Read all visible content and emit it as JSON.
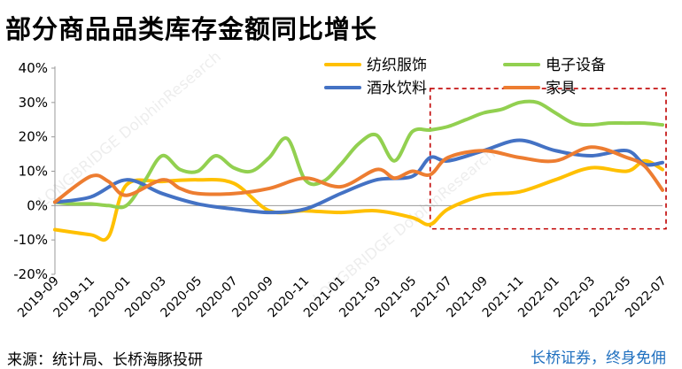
{
  "page": {
    "source_text": "来源：统计局、长桥海豚投研",
    "brand_text": "长桥证券，终身免佣",
    "watermark_text": "LONGBRIDGE DolphinResearch"
  },
  "chart_data": {
    "type": "line",
    "title": "部分商品品类库存金额同比增长",
    "xlabel": "",
    "ylabel": "",
    "y_unit": "%",
    "ylim": [
      -20,
      40
    ],
    "yticks": [
      -20,
      -10,
      0,
      10,
      20,
      30,
      40
    ],
    "ytick_labels": [
      "-20%",
      "-10%",
      "0%",
      "10%",
      "20%",
      "30%",
      "40%"
    ],
    "x_labels": [
      "2019-09",
      "2019-11",
      "2020-01",
      "2020-03",
      "2020-05",
      "2020-07",
      "2020-09",
      "2020-11",
      "2021-01",
      "2021-03",
      "2021-05",
      "2021-07",
      "2021-09",
      "2021-11",
      "2022-01",
      "2022-03",
      "2022-05",
      "2022-07"
    ],
    "x_label_months": [
      0,
      2,
      4,
      6,
      8,
      10,
      12,
      14,
      16,
      18,
      20,
      22,
      24,
      26,
      28,
      30,
      32,
      34
    ],
    "x_start_label": "2019-09",
    "x_end_label": "2022-07",
    "grid": false,
    "legend_position": "top-right",
    "highlight": {
      "from": "2021-06",
      "to": "2022-07",
      "ymin": -6,
      "ymax": 32,
      "style": "dashed",
      "color": "#c00000"
    },
    "series": [
      {
        "name": "纺织服饰",
        "color": "#ffc000",
        "x": [
          0,
          2,
          3,
          4,
          6,
          8,
          10,
          12,
          14,
          16,
          18,
          20,
          21,
          22,
          24,
          26,
          28,
          30,
          32,
          33,
          34
        ],
        "values": [
          -7,
          -8.5,
          -9,
          6,
          7,
          7.5,
          6.5,
          -1.5,
          -1.5,
          -2,
          -1.5,
          -3.5,
          -5.5,
          -1,
          3,
          4,
          7.5,
          11,
          10,
          13,
          10.5
        ]
      },
      {
        "name": "电子设备",
        "color": "#92d050",
        "x": [
          0,
          1,
          2,
          3,
          4,
          5,
          6,
          7,
          8,
          9,
          10,
          11,
          12,
          13,
          14,
          15,
          16,
          17,
          18,
          19,
          20,
          21,
          22,
          23,
          24,
          25,
          26,
          27,
          28,
          29,
          30,
          31,
          32,
          33,
          34
        ],
        "values": [
          1,
          0.5,
          0.5,
          0,
          0,
          7,
          14.5,
          10.5,
          10,
          14.5,
          11,
          10,
          14,
          19.5,
          7.5,
          7,
          12,
          18,
          20.5,
          13,
          21.5,
          22,
          23,
          25,
          27,
          28,
          30,
          30,
          27,
          24,
          23.5,
          24,
          24,
          24,
          23.5
        ]
      },
      {
        "name": "酒水饮料",
        "color": "#4472c4",
        "x": [
          0,
          2,
          4,
          6,
          8,
          10,
          12,
          14,
          16,
          18,
          20,
          21,
          22,
          24,
          26,
          28,
          30,
          32,
          33,
          34
        ],
        "values": [
          1,
          2.5,
          7.5,
          3.5,
          0.5,
          -1,
          -2,
          -1,
          3.5,
          7.5,
          8.5,
          14,
          13,
          16,
          19,
          16,
          14.5,
          16,
          12,
          12.5
        ]
      },
      {
        "name": "家具",
        "color": "#ed7d31",
        "x": [
          0,
          2,
          3,
          4,
          6,
          7,
          8,
          10,
          12,
          14,
          16,
          18,
          19,
          20,
          21,
          22,
          24,
          26,
          28,
          30,
          32,
          33,
          34
        ],
        "values": [
          1,
          8.5,
          7,
          3,
          7.5,
          5,
          3.5,
          3.5,
          5,
          8,
          5.5,
          10.5,
          8,
          10,
          9,
          14,
          16,
          14,
          13,
          17,
          14,
          11.5,
          4.5
        ]
      }
    ]
  }
}
